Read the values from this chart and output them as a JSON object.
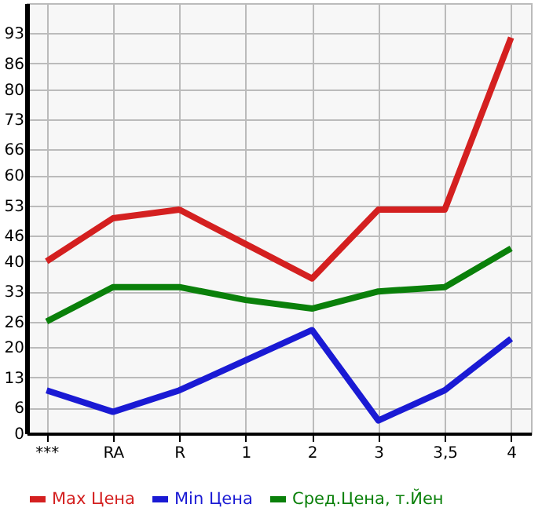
{
  "chart_data": {
    "type": "line",
    "categories": [
      "***",
      "RA",
      "R",
      "1",
      "2",
      "3",
      "3,5",
      "4"
    ],
    "series": [
      {
        "name": "Max Цена",
        "color": "#d42020",
        "values": [
          40,
          50,
          52,
          44,
          36,
          52,
          52,
          92
        ]
      },
      {
        "name": "Min Цена",
        "color": "#1a1ad4",
        "values": [
          10,
          5,
          10,
          17,
          24,
          3,
          10,
          22
        ]
      },
      {
        "name": "Сред.Цена, т.Йен",
        "color": "#0a800a",
        "values": [
          26,
          34,
          34,
          31,
          29,
          33,
          34,
          43
        ]
      }
    ],
    "ylim": [
      0,
      100
    ],
    "yticks": [
      0,
      6,
      13,
      20,
      26,
      33,
      40,
      46,
      53,
      60,
      66,
      73,
      80,
      86,
      93
    ],
    "grid": true,
    "legend": "bottom",
    "marker": "none",
    "line_style": "solid"
  }
}
